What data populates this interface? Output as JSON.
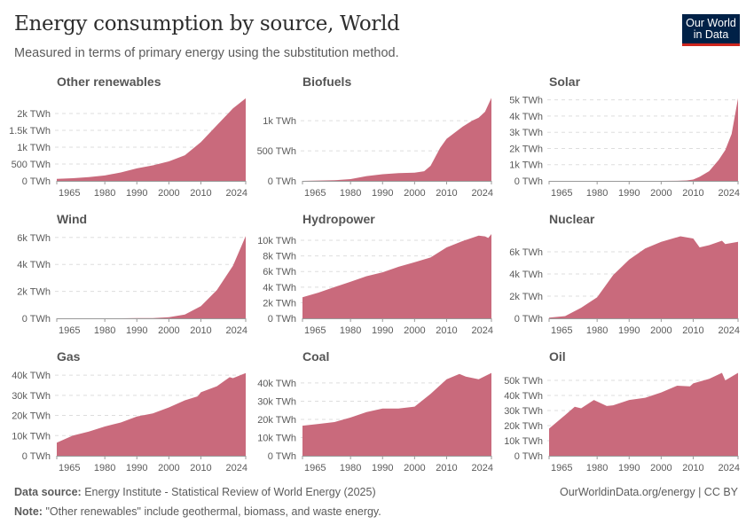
{
  "header": {
    "title": "Energy consumption by source, World",
    "subtitle": "Measured in terms of primary energy using the substitution method.",
    "logo": "Our World in Data"
  },
  "footer": {
    "source_label": "Data source:",
    "source": "Energy Institute - Statistical Review of World Energy (2025)",
    "url": "OurWorldinData.org/energy | CC BY",
    "note_label": "Note:",
    "note": "\"Other renewables\" include geothermal, biomass, and waste energy."
  },
  "colors": {
    "area": "#c96a7c",
    "grid": "#dddddd",
    "text": "#5b5b5b"
  },
  "chart_data": [
    {
      "type": "area",
      "title": "Other renewables",
      "ymax": 2500,
      "ticks": [
        0,
        500,
        1000,
        1500,
        2000
      ],
      "tick_labels": [
        "0 TWh",
        "500 TWh",
        "1k TWh",
        "1.5k TWh",
        "2k TWh"
      ],
      "xticks": [
        1965,
        1980,
        1990,
        2000,
        2010,
        2024
      ],
      "x": [
        1965,
        1970,
        1975,
        1980,
        1985,
        1990,
        1995,
        2000,
        2005,
        2010,
        2015,
        2020,
        2024
      ],
      "values": [
        60,
        80,
        110,
        160,
        250,
        370,
        460,
        580,
        760,
        1150,
        1650,
        2150,
        2450
      ]
    },
    {
      "type": "area",
      "title": "Biofuels",
      "ymax": 1400,
      "ticks": [
        0,
        500,
        1000
      ],
      "tick_labels": [
        "0 TWh",
        "500 TWh",
        "1k TWh"
      ],
      "xticks": [
        1965,
        1980,
        1990,
        2000,
        2010,
        2024
      ],
      "x": [
        1965,
        1975,
        1980,
        1985,
        1990,
        1995,
        2000,
        2003,
        2005,
        2008,
        2010,
        2015,
        2018,
        2020,
        2022,
        2024
      ],
      "values": [
        0,
        10,
        30,
        80,
        110,
        130,
        135,
        160,
        250,
        550,
        700,
        900,
        1000,
        1050,
        1150,
        1380
      ]
    },
    {
      "type": "area",
      "title": "Solar",
      "ymax": 5200,
      "ticks": [
        0,
        1000,
        2000,
        3000,
        4000,
        5000
      ],
      "tick_labels": [
        "0 TWh",
        "1k TWh",
        "2k TWh",
        "3k TWh",
        "4k TWh",
        "5k TWh"
      ],
      "xticks": [
        1965,
        1980,
        1990,
        2000,
        2010,
        2024
      ],
      "x": [
        1965,
        2000,
        2005,
        2008,
        2010,
        2012,
        2015,
        2018,
        2020,
        2022,
        2024
      ],
      "values": [
        0,
        2,
        8,
        30,
        80,
        250,
        600,
        1300,
        1900,
        2900,
        5100
      ]
    },
    {
      "type": "area",
      "title": "Wind",
      "ymax": 6250,
      "ticks": [
        0,
        2000,
        4000,
        6000
      ],
      "tick_labels": [
        "0 TWh",
        "2k TWh",
        "4k TWh",
        "6k TWh"
      ],
      "xticks": [
        1965,
        1980,
        1990,
        2000,
        2010,
        2024
      ],
      "x": [
        1965,
        1985,
        1990,
        1995,
        2000,
        2005,
        2010,
        2015,
        2020,
        2022,
        2024
      ],
      "values": [
        0,
        2,
        10,
        20,
        80,
        280,
        900,
        2100,
        3900,
        5000,
        6100
      ]
    },
    {
      "type": "area",
      "title": "Hydropower",
      "ymax": 10800,
      "ticks": [
        0,
        2000,
        4000,
        6000,
        8000,
        10000
      ],
      "tick_labels": [
        "0 TWh",
        "2k TWh",
        "4k TWh",
        "6k TWh",
        "8k TWh",
        "10k TWh"
      ],
      "xticks": [
        1965,
        1980,
        1990,
        2000,
        2010,
        2024
      ],
      "x": [
        1965,
        1970,
        1975,
        1980,
        1985,
        1990,
        1995,
        2000,
        2005,
        2010,
        2015,
        2020,
        2022,
        2023,
        2024
      ],
      "values": [
        2700,
        3300,
        4000,
        4700,
        5400,
        5900,
        6600,
        7200,
        7800,
        9100,
        9900,
        10600,
        10500,
        10300,
        10800
      ]
    },
    {
      "type": "area",
      "title": "Nuclear",
      "ymax": 7600,
      "ticks": [
        0,
        2000,
        4000,
        6000
      ],
      "tick_labels": [
        "0 TWh",
        "2k TWh",
        "4k TWh",
        "6k TWh"
      ],
      "xticks": [
        1965,
        1980,
        1990,
        2000,
        2010,
        2024
      ],
      "x": [
        1965,
        1970,
        1975,
        1980,
        1985,
        1990,
        1995,
        2000,
        2006,
        2010,
        2012,
        2015,
        2019,
        2020,
        2022,
        2024
      ],
      "values": [
        60,
        200,
        950,
        1900,
        3900,
        5300,
        6300,
        6900,
        7400,
        7200,
        6400,
        6600,
        7000,
        6700,
        6800,
        6900
      ]
    },
    {
      "type": "area",
      "title": "Gas",
      "ymax": 41800,
      "ticks": [
        0,
        10000,
        20000,
        30000,
        40000
      ],
      "tick_labels": [
        "0 TWh",
        "10k TWh",
        "20k TWh",
        "30k TWh",
        "40k TWh"
      ],
      "xticks": [
        1965,
        1980,
        1990,
        2000,
        2010,
        2024
      ],
      "x": [
        1965,
        1970,
        1975,
        1980,
        1985,
        1990,
        1995,
        2000,
        2005,
        2009,
        2010,
        2015,
        2019,
        2020,
        2024
      ],
      "values": [
        6500,
        10000,
        12000,
        14500,
        16500,
        19500,
        21000,
        24000,
        27500,
        29500,
        31500,
        34500,
        39000,
        38500,
        41000
      ]
    },
    {
      "type": "area",
      "title": "Coal",
      "ymax": 46300,
      "ticks": [
        0,
        10000,
        20000,
        30000,
        40000
      ],
      "tick_labels": [
        "0 TWh",
        "10k TWh",
        "20k TWh",
        "30k TWh",
        "40k TWh"
      ],
      "xticks": [
        1965,
        1980,
        1990,
        2000,
        2010,
        2024
      ],
      "x": [
        1965,
        1970,
        1975,
        1980,
        1985,
        1990,
        1995,
        2000,
        2005,
        2010,
        2014,
        2016,
        2020,
        2024
      ],
      "values": [
        16500,
        17500,
        18500,
        21000,
        24000,
        26000,
        26000,
        27000,
        34000,
        42000,
        45000,
        43500,
        42000,
        45500
      ]
    },
    {
      "type": "area",
      "title": "Oil",
      "ymax": 55900,
      "ticks": [
        0,
        10000,
        20000,
        30000,
        40000,
        50000
      ],
      "tick_labels": [
        "0 TWh",
        "10k TWh",
        "20k TWh",
        "30k TWh",
        "40k TWh",
        "50k TWh"
      ],
      "xticks": [
        1965,
        1980,
        1990,
        2000,
        2010,
        2024
      ],
      "x": [
        1965,
        1970,
        1973,
        1975,
        1979,
        1983,
        1985,
        1990,
        1995,
        2000,
        2005,
        2009,
        2010,
        2015,
        2019,
        2020,
        2024
      ],
      "values": [
        18000,
        27000,
        32500,
        31500,
        37000,
        33000,
        33500,
        37000,
        38500,
        42000,
        46500,
        46000,
        48000,
        51000,
        55000,
        50000,
        55000
      ]
    }
  ]
}
